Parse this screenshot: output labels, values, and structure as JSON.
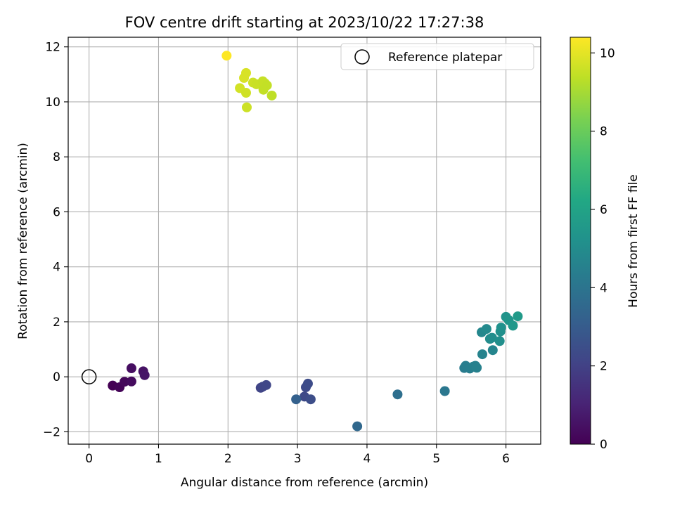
{
  "chart_data": {
    "type": "scatter",
    "title": "FOV centre drift starting at 2023/10/22 17:27:38",
    "xlabel": "Angular distance from reference (arcmin)",
    "ylabel": "Rotation from reference (arcmin)",
    "xlim": [
      -0.3,
      6.5
    ],
    "ylim": [
      -2.45,
      12.35
    ],
    "xticks": [
      0,
      1,
      2,
      3,
      4,
      5,
      6
    ],
    "yticks": [
      -2,
      0,
      2,
      4,
      6,
      8,
      10,
      12
    ],
    "grid": true,
    "legend": {
      "label": "Reference platepar",
      "placement": "upper right"
    },
    "reference_point": {
      "x": 0,
      "y": 0
    },
    "colorbar": {
      "label": "Hours from first FF file",
      "colormap": "viridis",
      "range": [
        0,
        10.4
      ],
      "ticks": [
        0,
        2,
        4,
        6,
        8,
        10
      ]
    },
    "points": [
      {
        "x": 0.34,
        "y": -0.32,
        "hours": 0.0
      },
      {
        "x": 0.44,
        "y": -0.38,
        "hours": 0.1
      },
      {
        "x": 0.51,
        "y": -0.18,
        "hours": 0.2
      },
      {
        "x": 0.61,
        "y": -0.17,
        "hours": 0.3
      },
      {
        "x": 0.61,
        "y": 0.31,
        "hours": 0.4
      },
      {
        "x": 0.78,
        "y": 0.2,
        "hours": 0.5
      },
      {
        "x": 0.8,
        "y": 0.06,
        "hours": 0.6
      },
      {
        "x": 2.47,
        "y": -0.4,
        "hours": 2.1
      },
      {
        "x": 2.5,
        "y": -0.36,
        "hours": 2.15
      },
      {
        "x": 2.55,
        "y": -0.3,
        "hours": 2.2
      },
      {
        "x": 3.1,
        "y": -0.72,
        "hours": 2.3
      },
      {
        "x": 3.12,
        "y": -0.38,
        "hours": 2.35
      },
      {
        "x": 3.15,
        "y": -0.25,
        "hours": 2.4
      },
      {
        "x": 3.19,
        "y": -0.82,
        "hours": 2.45
      },
      {
        "x": 2.98,
        "y": -0.82,
        "hours": 3.2
      },
      {
        "x": 3.86,
        "y": -1.8,
        "hours": 3.5
      },
      {
        "x": 4.44,
        "y": -0.64,
        "hours": 3.8
      },
      {
        "x": 5.12,
        "y": -0.52,
        "hours": 4.1
      },
      {
        "x": 5.4,
        "y": 0.32,
        "hours": 4.3
      },
      {
        "x": 5.42,
        "y": 0.4,
        "hours": 4.35
      },
      {
        "x": 5.48,
        "y": 0.3,
        "hours": 4.4
      },
      {
        "x": 5.53,
        "y": 0.37,
        "hours": 4.45
      },
      {
        "x": 5.56,
        "y": 0.4,
        "hours": 4.5
      },
      {
        "x": 5.58,
        "y": 0.33,
        "hours": 4.55
      },
      {
        "x": 5.66,
        "y": 0.82,
        "hours": 4.6
      },
      {
        "x": 5.81,
        "y": 0.97,
        "hours": 4.7
      },
      {
        "x": 5.65,
        "y": 1.62,
        "hours": 4.8
      },
      {
        "x": 5.72,
        "y": 1.74,
        "hours": 4.9
      },
      {
        "x": 5.77,
        "y": 1.38,
        "hours": 5.0
      },
      {
        "x": 5.8,
        "y": 1.42,
        "hours": 5.05
      },
      {
        "x": 5.91,
        "y": 1.3,
        "hours": 5.1
      },
      {
        "x": 5.92,
        "y": 1.65,
        "hours": 5.15
      },
      {
        "x": 5.93,
        "y": 1.79,
        "hours": 5.2
      },
      {
        "x": 6.0,
        "y": 2.18,
        "hours": 5.3
      },
      {
        "x": 6.04,
        "y": 2.06,
        "hours": 5.4
      },
      {
        "x": 6.1,
        "y": 1.86,
        "hours": 5.5
      },
      {
        "x": 6.17,
        "y": 2.2,
        "hours": 5.6
      },
      {
        "x": 1.98,
        "y": 11.68,
        "hours": 10.4
      },
      {
        "x": 2.23,
        "y": 10.87,
        "hours": 9.8
      },
      {
        "x": 2.26,
        "y": 11.05,
        "hours": 9.8
      },
      {
        "x": 2.17,
        "y": 10.5,
        "hours": 9.7
      },
      {
        "x": 2.26,
        "y": 10.33,
        "hours": 9.65
      },
      {
        "x": 2.27,
        "y": 9.8,
        "hours": 9.6
      },
      {
        "x": 2.36,
        "y": 10.7,
        "hours": 9.6
      },
      {
        "x": 2.41,
        "y": 10.64,
        "hours": 9.55
      },
      {
        "x": 2.5,
        "y": 10.75,
        "hours": 9.5
      },
      {
        "x": 2.53,
        "y": 10.68,
        "hours": 9.5
      },
      {
        "x": 2.51,
        "y": 10.44,
        "hours": 9.45
      },
      {
        "x": 2.56,
        "y": 10.6,
        "hours": 9.45
      },
      {
        "x": 2.63,
        "y": 10.23,
        "hours": 9.4
      }
    ]
  }
}
